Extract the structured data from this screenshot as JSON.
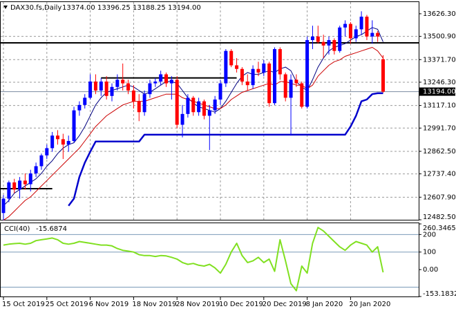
{
  "chart_data": [
    {
      "type": "candlestick",
      "title": "DAX30.fs,Daily",
      "header_values": [
        "13374.00",
        "13396.25",
        "13188.25",
        "13194.00"
      ],
      "price_label": "13194.00",
      "categories": [
        "15 Oct 2019",
        null,
        null,
        null,
        null,
        null,
        null,
        null,
        "25 Oct 2019",
        null,
        null,
        null,
        null,
        null,
        null,
        null,
        "6 Nov 2019",
        null,
        null,
        null,
        null,
        null,
        null,
        null,
        "18 Nov 2019",
        null,
        null,
        null,
        null,
        null,
        null,
        null,
        "28 Nov 2019",
        null,
        null,
        null,
        null,
        null,
        null,
        null,
        "10 Dec 2019",
        null,
        null,
        null,
        null,
        null,
        null,
        null,
        "20 Dec 2019",
        null,
        null,
        null,
        null,
        null,
        null,
        null,
        "8 Jan 2020",
        null,
        null,
        null,
        null,
        null,
        null,
        null,
        "20 Jan 2020",
        null,
        null,
        null,
        null,
        null,
        null
      ],
      "open": [
        12520,
        12600,
        12690,
        12650,
        12700,
        12680,
        12740,
        12780,
        12840,
        12880,
        12950,
        12930,
        12900,
        12920,
        13090,
        13120,
        13160,
        13250,
        13200,
        13250,
        13170,
        13220,
        13260,
        13240,
        13200,
        13140,
        13080,
        13180,
        13240,
        13250,
        13290,
        13240,
        13260,
        13010,
        13070,
        13160,
        13080,
        13140,
        13060,
        13090,
        13150,
        13240,
        13420,
        13340,
        13320,
        13250,
        13230,
        13320,
        13300,
        13350,
        13130,
        13430,
        13290,
        13160,
        13260,
        13240,
        13110,
        13480,
        13500,
        13470,
        13450,
        13480,
        13420,
        13550,
        13570,
        13490,
        13540,
        13610,
        13500,
        13520,
        13374
      ],
      "high": [
        12620,
        12700,
        12710,
        12720,
        12740,
        12760,
        12800,
        12850,
        12900,
        12970,
        12980,
        12960,
        12950,
        13110,
        13140,
        13180,
        13290,
        13290,
        13270,
        13280,
        13240,
        13290,
        13350,
        13260,
        13230,
        13180,
        13200,
        13260,
        13270,
        13310,
        13300,
        13280,
        13280,
        13120,
        13180,
        13170,
        13160,
        13150,
        13120,
        13170,
        13260,
        13430,
        13430,
        13380,
        13330,
        13290,
        13340,
        13360,
        13370,
        13360,
        13440,
        13440,
        13300,
        13290,
        13290,
        13250,
        13500,
        13560,
        13560,
        13510,
        13500,
        13490,
        13560,
        13590,
        13580,
        13560,
        13640,
        13620,
        13590,
        13530,
        13396.25
      ],
      "low": [
        12480,
        12580,
        12630,
        12600,
        12650,
        12640,
        12720,
        12760,
        12820,
        12860,
        12900,
        12820,
        12860,
        12910,
        13060,
        13100,
        13150,
        13180,
        13170,
        13150,
        13140,
        13200,
        13200,
        13180,
        13100,
        13030,
        13060,
        13160,
        13220,
        13230,
        13220,
        13150,
        12990,
        12940,
        13050,
        13060,
        13060,
        13040,
        12870,
        13070,
        13120,
        13220,
        13330,
        13300,
        13230,
        13200,
        13210,
        13280,
        13280,
        13110,
        13120,
        13260,
        13140,
        12950,
        13220,
        13100,
        13100,
        13430,
        13460,
        13380,
        13400,
        13400,
        13410,
        13500,
        13460,
        13470,
        13510,
        13480,
        13460,
        13470,
        13188.25
      ],
      "close": [
        12600,
        12690,
        12650,
        12700,
        12680,
        12740,
        12780,
        12840,
        12880,
        12950,
        12930,
        12900,
        12920,
        13090,
        13120,
        13160,
        13250,
        13200,
        13250,
        13170,
        13220,
        13260,
        13240,
        13200,
        13140,
        13080,
        13180,
        13240,
        13250,
        13290,
        13240,
        13260,
        13010,
        13070,
        13160,
        13080,
        13140,
        13060,
        13090,
        13150,
        13240,
        13420,
        13340,
        13320,
        13250,
        13230,
        13320,
        13300,
        13350,
        13130,
        13430,
        13290,
        13160,
        13260,
        13240,
        13110,
        13480,
        13500,
        13470,
        13450,
        13480,
        13420,
        13550,
        13570,
        13490,
        13540,
        13610,
        13500,
        13520,
        13500,
        13194
      ],
      "up_color": "#0000ff",
      "down_color": "#ff0000",
      "lines": [
        {
          "color": "#000080",
          "width": 1,
          "values": [
            12560,
            12590,
            12630,
            12650,
            12670,
            12690,
            12710,
            12740,
            12780,
            12810,
            12850,
            12880,
            12900,
            12910,
            12950,
            13000,
            13060,
            13120,
            13160,
            13190,
            13200,
            13210,
            13220,
            13230,
            13220,
            13200,
            13180,
            13190,
            13210,
            13230,
            13250,
            13250,
            13240,
            13200,
            13160,
            13130,
            13110,
            13100,
            13090,
            13080,
            13100,
            13140,
            13190,
            13240,
            13280,
            13300,
            13290,
            13290,
            13300,
            13310,
            13300,
            13320,
            13330,
            13310,
            13250,
            13220,
            13200,
            13260,
            13330,
            13380,
            13420,
            13440,
            13450,
            13460,
            13480,
            13500,
            13510,
            13530,
            13550,
            13540,
            13470
          ]
        },
        {
          "color": "#cc0000",
          "width": 1,
          "values": [
            12480,
            12500,
            12530,
            12560,
            12590,
            12610,
            12640,
            12670,
            12700,
            12730,
            12760,
            12790,
            12820,
            12850,
            12880,
            12920,
            12960,
            13000,
            13030,
            13060,
            13080,
            13100,
            13120,
            13130,
            13140,
            13140,
            13140,
            13150,
            13160,
            13170,
            13180,
            13180,
            13180,
            13160,
            13150,
            13140,
            13130,
            13120,
            13110,
            13100,
            13100,
            13120,
            13150,
            13170,
            13190,
            13200,
            13210,
            13220,
            13230,
            13240,
            13230,
            13250,
            13250,
            13240,
            13230,
            13230,
            13210,
            13230,
            13280,
            13310,
            13340,
            13360,
            13370,
            13390,
            13400,
            13410,
            13420,
            13430,
            13440,
            13420,
            13380
          ]
        },
        {
          "color": "#0000cc",
          "width": 2.5,
          "values": [
            null,
            null,
            null,
            null,
            null,
            null,
            null,
            null,
            null,
            null,
            null,
            null,
            12560,
            12600,
            12720,
            12800,
            12860,
            12917,
            12917,
            12917,
            12917,
            12917,
            12917,
            12917,
            12917,
            12917,
            12955,
            12955,
            12955,
            12955,
            12955,
            12955,
            12955,
            12955,
            12955,
            12955,
            12955,
            12955,
            12955,
            12955,
            12955,
            12955,
            12955,
            12955,
            12955,
            12955,
            12955,
            12955,
            12955,
            12955,
            12955,
            12955,
            12955,
            12955,
            12955,
            12955,
            12955,
            12955,
            12955,
            12955,
            12955,
            12955,
            12955,
            12955,
            13000,
            13060,
            13140,
            13150,
            13180,
            13185,
            13185
          ]
        }
      ],
      "levels": [
        {
          "value": 13465,
          "from": 0,
          "to": 70
        },
        {
          "value": 13270,
          "from": 18,
          "to": 43
        },
        {
          "value": 12655,
          "from": 0,
          "to": 9
        }
      ],
      "ylim": [
        12482.5,
        13695
      ],
      "yticks": [
        {
          "value": 13626.3,
          "label": "13626.30"
        },
        {
          "value": 13500.9,
          "label": "13500.90"
        },
        {
          "value": 13371.7,
          "label": "13371.70"
        },
        {
          "value": 13246.3,
          "label": "13246.30"
        },
        {
          "value": 13117.1,
          "label": "13117.10"
        },
        {
          "value": 12991.7,
          "label": "12991.70"
        },
        {
          "value": 12862.5,
          "label": "12862.50"
        },
        {
          "value": 12737.4,
          "label": "12737.40"
        },
        {
          "value": 12607.9,
          "label": "12607.90"
        },
        {
          "value": 12482.5,
          "label": "12482.50"
        }
      ],
      "grid": true
    },
    {
      "type": "line",
      "title": "CCI(40)",
      "color": "#80e020",
      "values": [
        140,
        145,
        148,
        150,
        145,
        150,
        165,
        170,
        175,
        180,
        170,
        150,
        145,
        150,
        160,
        155,
        150,
        145,
        140,
        140,
        135,
        120,
        110,
        105,
        100,
        85,
        80,
        80,
        75,
        80,
        78,
        70,
        60,
        40,
        30,
        35,
        25,
        20,
        30,
        10,
        -20,
        30,
        100,
        150,
        80,
        40,
        50,
        70,
        40,
        60,
        -10,
        170,
        50,
        -80,
        -120,
        20,
        -20,
        150,
        240,
        220,
        190,
        160,
        130,
        110,
        140,
        160,
        150,
        140,
        100,
        130,
        -15.6874
      ],
      "levels": [
        200,
        100,
        -100
      ],
      "ylim": [
        -153.1832,
        260.3465
      ],
      "yticks": [
        {
          "value": 260.3465,
          "label": "260.3465"
        },
        200,
        100,
        {
          "value": 0,
          "label": "0.00"
        },
        {
          "value": -153.1832,
          "label": "-153.1832"
        }
      ]
    }
  ]
}
